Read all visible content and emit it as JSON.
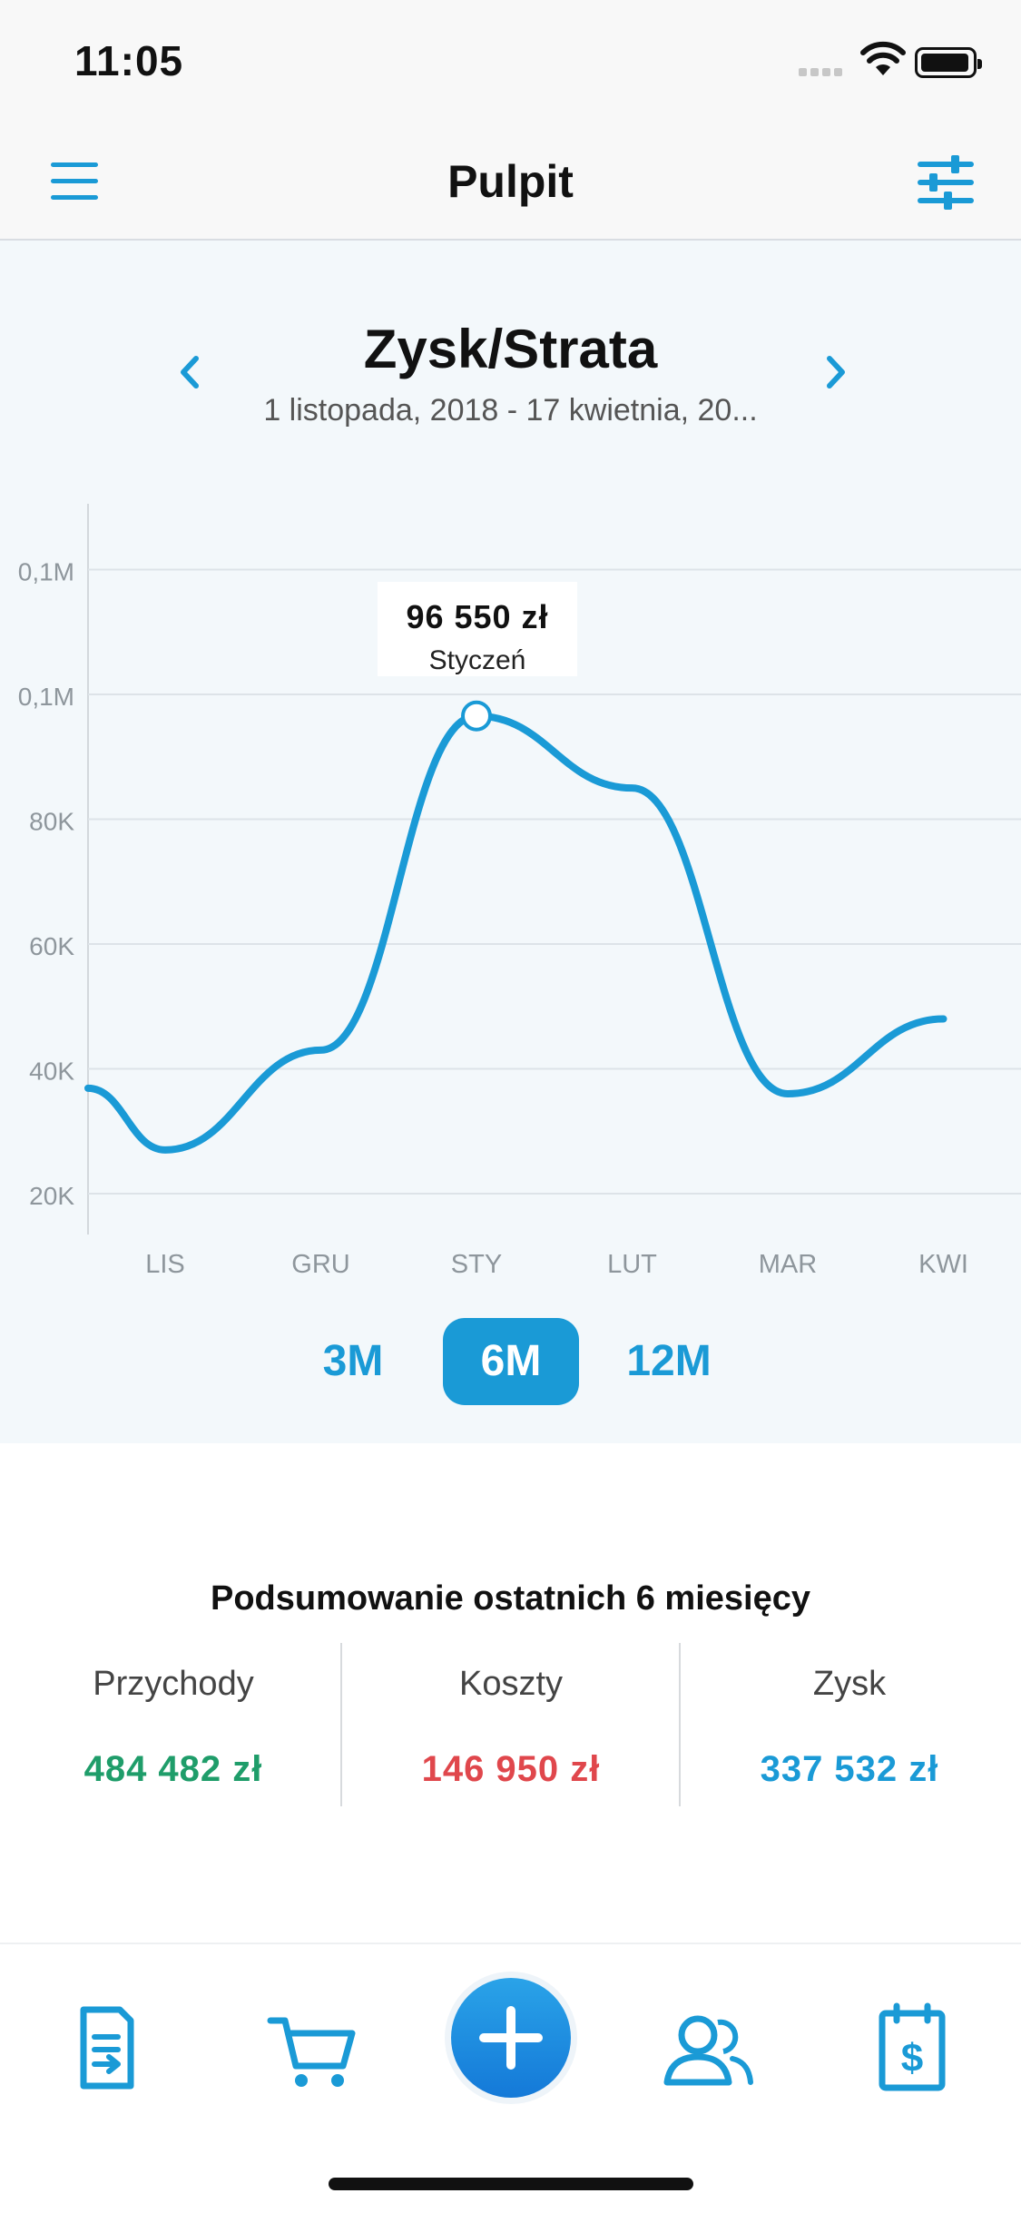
{
  "status_bar": {
    "time": "11:05"
  },
  "nav": {
    "title": "Pulpit"
  },
  "chart_header": {
    "title": "Zysk/Strata",
    "subtitle": "1 listopada, 2018 - 17 kwietnia, 20..."
  },
  "tooltip": {
    "value": "96 550 zł",
    "month": "Styczeń"
  },
  "chart_data": {
    "type": "line",
    "categories": [
      "LIS",
      "GRU",
      "STY",
      "LUT",
      "MAR",
      "KWI"
    ],
    "series": [
      {
        "values": [
          27000,
          43000,
          96550,
          85000,
          36000,
          48000
        ]
      }
    ],
    "y_tick_labels": [
      "20K",
      "40K",
      "60K",
      "80K",
      "0,1M",
      "0,1M"
    ],
    "y_ticks": [
      20000,
      40000,
      60000,
      80000,
      100000,
      120000
    ],
    "ylim": [
      15000,
      130000
    ],
    "grid": true,
    "color": "#1a9ad6"
  },
  "ranges": [
    {
      "label": "3M",
      "active": false
    },
    {
      "label": "6M",
      "active": true
    },
    {
      "label": "12M",
      "active": false
    }
  ],
  "summary": {
    "title": "Podsumowanie ostatnich 6 miesięcy",
    "income": {
      "label": "Przychody",
      "value": "484 482 zł",
      "color": "#1f9d6a"
    },
    "costs": {
      "label": "Koszty",
      "value": "146 950 zł",
      "color": "#e0474c"
    },
    "profit": {
      "label": "Zysk",
      "value": "337 532 zł",
      "color": "#1a9ad6"
    }
  },
  "tabbar": {
    "items": [
      "invoice-icon",
      "cart-icon",
      "add-icon",
      "contacts-icon",
      "payment-icon"
    ]
  },
  "colors": {
    "accent": "#1a9ad6",
    "panel_bg": "#f3f8fb"
  }
}
